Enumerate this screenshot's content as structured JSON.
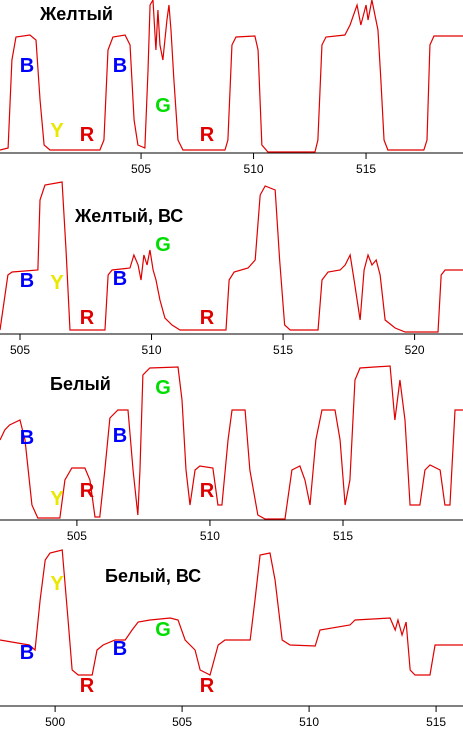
{
  "chart_data": [
    {
      "type": "line",
      "title": "Желтый",
      "color": "#e00000",
      "x": [
        498.73,
        499.09,
        499.26,
        499.44,
        500.06,
        500.33,
        500.51,
        500.69,
        500.95,
        503.17,
        503.35,
        503.53,
        503.75,
        504.29,
        504.51,
        504.69,
        504.86,
        505.17,
        505.31,
        505.4,
        505.53,
        505.66,
        505.75,
        505.84,
        505.97,
        506.15,
        506.24,
        506.33,
        506.46,
        506.64,
        506.86,
        508.73,
        508.86,
        509.04,
        509.22,
        510.06,
        510.2,
        510.37,
        510.64,
        512.73,
        512.86,
        513.04,
        513.22,
        514.06,
        514.29,
        514.6,
        514.77,
        515.0,
        515.09,
        515.26,
        515.53,
        515.66,
        515.8,
        515.97,
        516.51,
        517.57,
        517.71,
        517.84,
        518.02,
        519.31
      ],
      "values": [
        2,
        4,
        92,
        115,
        117,
        112,
        52,
        7,
        2,
        2,
        12,
        102,
        115,
        117,
        107,
        32,
        7,
        4,
        82,
        147,
        152,
        102,
        142,
        107,
        92,
        132,
        147,
        122,
        72,
        12,
        2,
        2,
        12,
        107,
        115,
        116,
        102,
        7,
        0,
        0,
        12,
        107,
        115,
        117,
        127,
        147,
        127,
        147,
        132,
        152,
        122,
        72,
        12,
        2,
        2,
        2,
        12,
        107,
        116,
        116
      ],
      "xlim": [
        498.73,
        519.31
      ],
      "xticks": [
        505,
        510,
        515
      ],
      "ylim": [
        0,
        155
      ],
      "annotations": [
        {
          "text": "B",
          "color": "#0000ff"
        },
        {
          "text": "Y",
          "color": "#e8e800"
        },
        {
          "text": "R",
          "color": "#e00000"
        },
        {
          "text": "B",
          "color": "#0000ff"
        },
        {
          "text": "G",
          "color": "#00dd00"
        },
        {
          "text": "R",
          "color": "#e00000"
        }
      ]
    },
    {
      "type": "line",
      "title": "Желтый, ВС",
      "color": "#e00000",
      "x": [
        504.24,
        504.54,
        504.7,
        505.68,
        505.76,
        505.95,
        506.6,
        506.75,
        506.9,
        508.23,
        508.35,
        508.5,
        509.18,
        509.33,
        509.49,
        509.6,
        509.71,
        509.83,
        509.94,
        510.06,
        510.17,
        510.32,
        510.51,
        510.78,
        511.08,
        512.83,
        512.95,
        513.14,
        513.67,
        513.94,
        514.13,
        514.32,
        514.7,
        514.87,
        515.06,
        515.27,
        516.33,
        516.48,
        516.71,
        517.17,
        517.36,
        517.55,
        517.7,
        517.93,
        518.08,
        518.23,
        518.38,
        518.54,
        518.69,
        518.88,
        519.26,
        519.64,
        520.89,
        521.01,
        521.16,
        521.84
      ],
      "values": [
        3,
        58,
        61,
        63,
        133,
        148,
        151,
        83,
        3,
        3,
        58,
        63,
        65,
        78,
        68,
        53,
        78,
        68,
        83,
        63,
        53,
        33,
        15,
        8,
        3,
        3,
        53,
        61,
        65,
        73,
        138,
        147,
        143,
        73,
        8,
        3,
        3,
        53,
        61,
        63,
        68,
        78,
        53,
        13,
        63,
        78,
        68,
        73,
        58,
        13,
        5,
        1,
        1,
        58,
        63,
        63
      ],
      "xlim": [
        504.24,
        521.84
      ],
      "xticks": [
        505,
        510,
        515,
        520
      ],
      "ylim": [
        0,
        155
      ],
      "annotations": [
        {
          "text": "B",
          "color": "#0000ff"
        },
        {
          "text": "Y",
          "color": "#e8e800"
        },
        {
          "text": "R",
          "color": "#e00000"
        },
        {
          "text": "B",
          "color": "#0000ff"
        },
        {
          "text": "G",
          "color": "#00dd00"
        },
        {
          "text": "R",
          "color": "#e00000"
        }
      ]
    },
    {
      "type": "line",
      "title": "Белый",
      "color": "#e00000",
      "x": [
        502.11,
        502.29,
        502.47,
        502.86,
        503.05,
        503.31,
        503.53,
        504.36,
        504.55,
        504.81,
        505.3,
        505.49,
        505.68,
        505.86,
        506.05,
        506.24,
        506.54,
        506.92,
        507.11,
        507.29,
        507.37,
        507.48,
        507.74,
        508.8,
        508.95,
        509.1,
        509.25,
        509.44,
        509.62,
        510.11,
        510.3,
        510.45,
        510.68,
        510.83,
        511.32,
        511.5,
        511.8,
        512.07,
        512.82,
        513.08,
        513.38,
        513.57,
        513.76,
        513.98,
        514.21,
        514.7,
        514.89,
        515.08,
        515.26,
        515.45,
        515.64,
        516.77,
        516.95,
        517.14,
        517.33,
        517.52,
        517.89,
        518.08,
        518.27,
        518.65,
        518.83,
        519.02,
        519.21,
        519.51
      ],
      "values": [
        79,
        89,
        94,
        99,
        79,
        14,
        1,
        1,
        39,
        51,
        51,
        39,
        2,
        2,
        49,
        101,
        109,
        109,
        49,
        4,
        49,
        144,
        151,
        152,
        119,
        49,
        14,
        49,
        53,
        51,
        14,
        14,
        79,
        109,
        109,
        49,
        4,
        0,
        0,
        49,
        53,
        39,
        14,
        79,
        109,
        109,
        79,
        14,
        39,
        139,
        151,
        153,
        99,
        139,
        99,
        14,
        14,
        49,
        54,
        49,
        14,
        14,
        109,
        109
      ],
      "xlim": [
        502.11,
        519.51
      ],
      "xticks": [
        505,
        510,
        515
      ],
      "ylim": [
        0,
        155
      ],
      "annotations": [
        {
          "text": "B",
          "color": "#0000ff"
        },
        {
          "text": "Y",
          "color": "#e8e800"
        },
        {
          "text": "R",
          "color": "#e00000"
        },
        {
          "text": "B",
          "color": "#0000ff"
        },
        {
          "text": "G",
          "color": "#00dd00"
        },
        {
          "text": "R",
          "color": "#e00000"
        }
      ]
    },
    {
      "type": "line",
      "title": "Белый, ВС",
      "color": "#e00000",
      "x": [
        497.83,
        498.98,
        499.21,
        499.41,
        499.61,
        499.8,
        500.28,
        500.51,
        500.67,
        500.91,
        501.46,
        501.65,
        501.89,
        502.36,
        502.76,
        503.03,
        503.27,
        503.74,
        504.53,
        504.84,
        505.12,
        505.51,
        505.71,
        506.1,
        506.42,
        506.69,
        507.68,
        507.87,
        508.07,
        508.46,
        508.66,
        508.94,
        509.25,
        510.24,
        510.43,
        511.61,
        511.81,
        513.19,
        513.39,
        513.5,
        513.66,
        513.82,
        513.98,
        514.17,
        514.76,
        514.96,
        516.06
      ],
      "values": [
        65,
        60,
        55,
        105,
        145,
        152,
        155,
        85,
        35,
        30,
        30,
        55,
        60,
        65,
        65,
        75,
        83,
        85,
        87,
        85,
        65,
        55,
        35,
        30,
        60,
        65,
        65,
        105,
        150,
        152,
        125,
        65,
        60,
        59,
        75,
        80,
        85,
        87,
        75,
        85,
        70,
        83,
        35,
        30,
        30,
        60,
        60
      ],
      "xlim": [
        497.83,
        516.06
      ],
      "xticks": [
        500,
        505,
        510,
        515
      ],
      "ylim": [
        0,
        155
      ],
      "annotations": [
        {
          "text": "B",
          "color": "#0000ff"
        },
        {
          "text": "Y",
          "color": "#e8e800"
        },
        {
          "text": "R",
          "color": "#e00000"
        },
        {
          "text": "B",
          "color": "#0000ff"
        },
        {
          "text": "G",
          "color": "#00dd00"
        },
        {
          "text": "R",
          "color": "#e00000"
        }
      ]
    }
  ]
}
